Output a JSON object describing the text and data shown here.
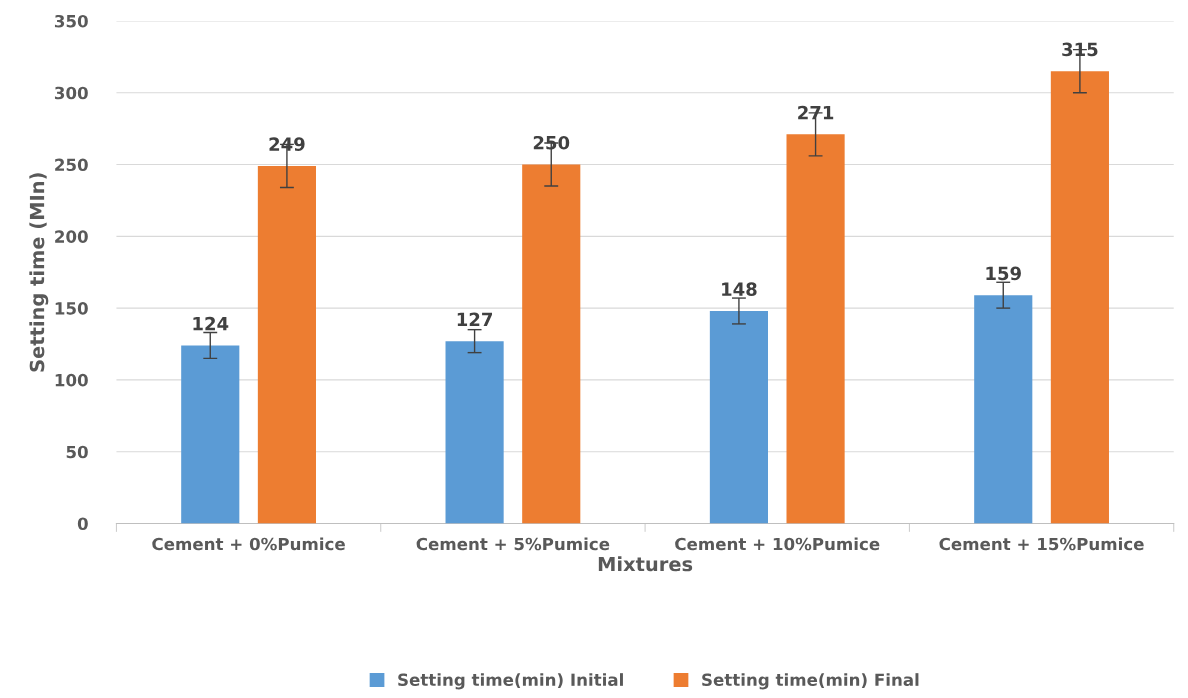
{
  "chart_data": {
    "type": "bar",
    "xlabel": "Mixtures",
    "ylabel": "Setting time (MIn)",
    "categories": [
      "Cement + 0%Pumice",
      "Cement + 5%Pumice",
      "Cement + 10%Pumice",
      "Cement + 15%Pumice"
    ],
    "series": [
      {
        "name": "Setting time(min) Initial",
        "color": "#5b9bd5",
        "values": [
          124,
          127,
          148,
          159
        ],
        "errors": [
          9,
          8,
          9,
          9
        ]
      },
      {
        "name": "Setting time(min) Final",
        "color": "#ed7d31",
        "values": [
          249,
          250,
          271,
          315
        ],
        "errors": [
          15,
          15,
          15,
          15
        ]
      }
    ],
    "ylim": [
      0,
      350
    ],
    "yticks": [
      0,
      50,
      100,
      150,
      200,
      250,
      300,
      350
    ],
    "grid": "y",
    "legend": "bottom",
    "data_labels": true
  }
}
